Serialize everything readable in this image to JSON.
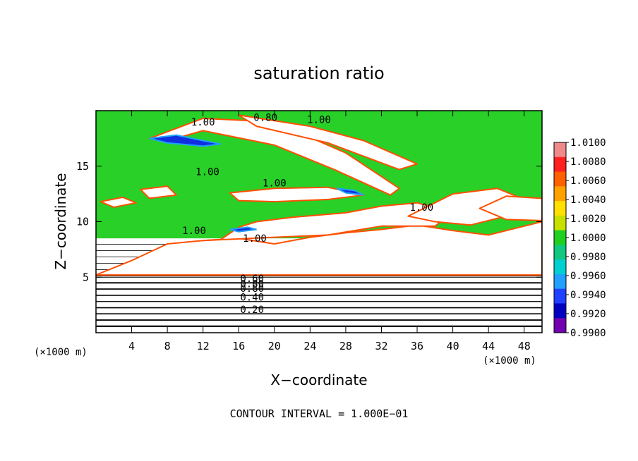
{
  "chart_data": {
    "type": "heatmap",
    "title": "saturation ratio",
    "xlabel": "X−coordinate",
    "ylabel": "Z−coordinate",
    "x_unit": "(×1000 m)",
    "y_unit": "(×1000 m)",
    "xlim": [
      0,
      50
    ],
    "ylim": [
      0,
      20
    ],
    "x_ticks": [
      4,
      8,
      12,
      16,
      20,
      24,
      28,
      32,
      36,
      40,
      44,
      48
    ],
    "y_ticks": [
      5,
      10,
      15
    ],
    "contour_interval_text": "CONTOUR INTERVAL = 1.000E−01",
    "colorbar": {
      "min": 0.99,
      "max": 1.01,
      "labels": [
        "1.0100",
        "1.0080",
        "1.0060",
        "1.0040",
        "1.0020",
        "1.0000",
        "0.9980",
        "0.9960",
        "0.9940",
        "0.9920",
        "0.9900"
      ],
      "colors": [
        "#f08a8a",
        "#ff2020",
        "#ff6000",
        "#ffa000",
        "#ffe000",
        "#c8e000",
        "#20d020",
        "#10c880",
        "#00d0d0",
        "#20a0ff",
        "#2040ff",
        "#0000c0",
        "#7000b0"
      ]
    },
    "contour_labels": [
      {
        "text": "0.20",
        "x": 17.5,
        "y": 2.1
      },
      {
        "text": "0.40",
        "x": 17.5,
        "y": 3.2
      },
      {
        "text": "0.60",
        "x": 17.5,
        "y": 4.0
      },
      {
        "text": "0.80",
        "x": 17.5,
        "y": 4.4
      },
      {
        "text": "0.60",
        "x": 17.5,
        "y": 4.9
      },
      {
        "text": "1.00",
        "x": 17.8,
        "y": 8.5
      },
      {
        "text": "1.00",
        "x": 11.0,
        "y": 9.2
      },
      {
        "text": "1.00",
        "x": 36.5,
        "y": 11.3
      },
      {
        "text": "1.00",
        "x": 20.0,
        "y": 13.5
      },
      {
        "text": "1.00",
        "x": 12.5,
        "y": 14.5
      },
      {
        "text": "1.00",
        "x": 12.0,
        "y": 19.0
      },
      {
        "text": "0.80",
        "x": 19.0,
        "y": 19.4
      },
      {
        "text": "1.00",
        "x": 25.0,
        "y": 19.2
      }
    ],
    "regions": {
      "subsaturated_band": [
        [
          0,
          0
        ],
        [
          50,
          0
        ],
        [
          50,
          8.5
        ],
        [
          0,
          8.5
        ]
      ],
      "near_saturation": [
        [
          0,
          8.5
        ],
        [
          50,
          8.5
        ],
        [
          50,
          20
        ],
        [
          0,
          20
        ]
      ],
      "clear_patches": [
        [
          [
            0,
            5.2
          ],
          [
            4,
            6.5
          ],
          [
            8,
            8
          ],
          [
            12,
            8.3
          ],
          [
            16,
            8.5
          ],
          [
            20,
            8
          ],
          [
            24,
            8.6
          ],
          [
            28,
            9
          ],
          [
            32,
            9.3
          ],
          [
            36,
            9.7
          ],
          [
            40,
            9.2
          ],
          [
            44,
            8.8
          ],
          [
            48,
            9.6
          ],
          [
            50,
            10
          ],
          [
            50,
            5.2
          ]
        ],
        [
          [
            12,
            8.3
          ],
          [
            14,
            8.4
          ],
          [
            16,
            9.5
          ],
          [
            18,
            10
          ],
          [
            22,
            10.4
          ],
          [
            28,
            10.8
          ],
          [
            32,
            11.4
          ],
          [
            36,
            11.7
          ],
          [
            40,
            10.8
          ],
          [
            38,
            9.6
          ],
          [
            32,
            9.6
          ],
          [
            26,
            8.8
          ],
          [
            20,
            8.6
          ]
        ],
        [
          [
            15,
            12.6
          ],
          [
            20,
            13
          ],
          [
            26,
            13.1
          ],
          [
            30,
            12.4
          ],
          [
            26,
            12
          ],
          [
            20,
            11.8
          ],
          [
            16,
            11.9
          ]
        ],
        [
          [
            35,
            10.5
          ],
          [
            40,
            12.5
          ],
          [
            45,
            13
          ],
          [
            48,
            12
          ],
          [
            46,
            10.5
          ],
          [
            42,
            9.7
          ],
          [
            38,
            10
          ]
        ],
        [
          [
            6,
            17.5
          ],
          [
            12,
            19.3
          ],
          [
            20,
            19
          ],
          [
            28,
            16.2
          ],
          [
            34,
            13
          ],
          [
            33,
            12.4
          ],
          [
            27,
            14.6
          ],
          [
            20,
            16.9
          ],
          [
            12,
            18.2
          ],
          [
            8,
            17.3
          ]
        ],
        [
          [
            16,
            19.6
          ],
          [
            24,
            18.6
          ],
          [
            30,
            17.3
          ],
          [
            36,
            15.2
          ],
          [
            34,
            14.7
          ],
          [
            26,
            17.1
          ],
          [
            18,
            18.6
          ]
        ],
        [
          [
            5,
            12.9
          ],
          [
            8,
            13.2
          ],
          [
            9,
            12.4
          ],
          [
            6,
            12.1
          ]
        ],
        [
          [
            0.5,
            11.8
          ],
          [
            3,
            12.2
          ],
          [
            4.5,
            11.7
          ],
          [
            2,
            11.3
          ]
        ],
        [
          [
            43,
            11.2
          ],
          [
            46,
            12.3
          ],
          [
            50,
            12.1
          ],
          [
            50,
            10.1
          ],
          [
            46,
            10.2
          ]
        ]
      ],
      "blue_streaks": [
        [
          [
            6,
            17.5
          ],
          [
            9,
            17.8
          ],
          [
            12,
            17.3
          ],
          [
            14,
            17.0
          ],
          [
            12,
            16.8
          ],
          [
            8,
            17.1
          ]
        ],
        [
          [
            27,
            13.0
          ],
          [
            29,
            12.8
          ],
          [
            30,
            12.4
          ],
          [
            28,
            12.6
          ]
        ],
        [
          [
            15,
            9.3
          ],
          [
            17,
            9.5
          ],
          [
            18,
            9.3
          ],
          [
            16,
            9.1
          ]
        ]
      ]
    }
  }
}
